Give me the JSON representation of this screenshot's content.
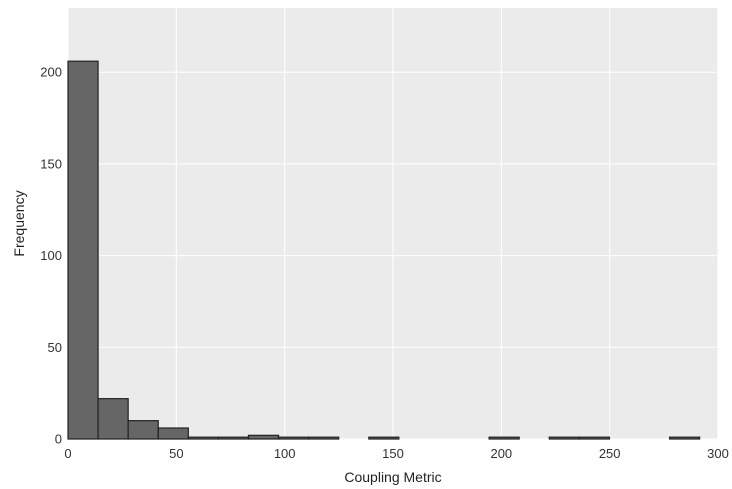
{
  "chart_data": {
    "type": "bar",
    "title": "",
    "xlabel": "Coupling Metric",
    "ylabel": "Frequency",
    "xlim": [
      0,
      300
    ],
    "ylim": [
      0,
      235
    ],
    "grid": true,
    "bin_width": 13.88,
    "bins": [
      {
        "x0": 0.0,
        "x1": 13.88,
        "count": 206
      },
      {
        "x0": 13.88,
        "x1": 27.77,
        "count": 22
      },
      {
        "x0": 27.77,
        "x1": 41.65,
        "count": 10
      },
      {
        "x0": 41.65,
        "x1": 55.53,
        "count": 6
      },
      {
        "x0": 55.53,
        "x1": 69.41,
        "count": 1
      },
      {
        "x0": 69.41,
        "x1": 83.3,
        "count": 1
      },
      {
        "x0": 83.3,
        "x1": 97.18,
        "count": 2
      },
      {
        "x0": 97.18,
        "x1": 111.06,
        "count": 1
      },
      {
        "x0": 111.06,
        "x1": 124.94,
        "count": 1
      },
      {
        "x0": 124.94,
        "x1": 138.83,
        "count": 0
      },
      {
        "x0": 138.83,
        "x1": 152.71,
        "count": 1
      },
      {
        "x0": 152.71,
        "x1": 166.59,
        "count": 0
      },
      {
        "x0": 166.59,
        "x1": 180.47,
        "count": 0
      },
      {
        "x0": 180.47,
        "x1": 194.36,
        "count": 0
      },
      {
        "x0": 194.36,
        "x1": 208.24,
        "count": 1
      },
      {
        "x0": 208.24,
        "x1": 222.12,
        "count": 0
      },
      {
        "x0": 222.12,
        "x1": 236.0,
        "count": 1
      },
      {
        "x0": 236.0,
        "x1": 249.89,
        "count": 1
      },
      {
        "x0": 249.89,
        "x1": 263.77,
        "count": 0
      },
      {
        "x0": 263.77,
        "x1": 277.65,
        "count": 0
      },
      {
        "x0": 277.65,
        "x1": 291.53,
        "count": 1
      }
    ],
    "x_ticks": [
      0,
      50,
      100,
      150,
      200,
      250,
      300
    ],
    "y_ticks": [
      0,
      50,
      100,
      150,
      200
    ],
    "colors": {
      "panel": "#ebebeb",
      "grid": "#ffffff",
      "bar_fill": "#666666",
      "bar_stroke": "#222222"
    }
  }
}
